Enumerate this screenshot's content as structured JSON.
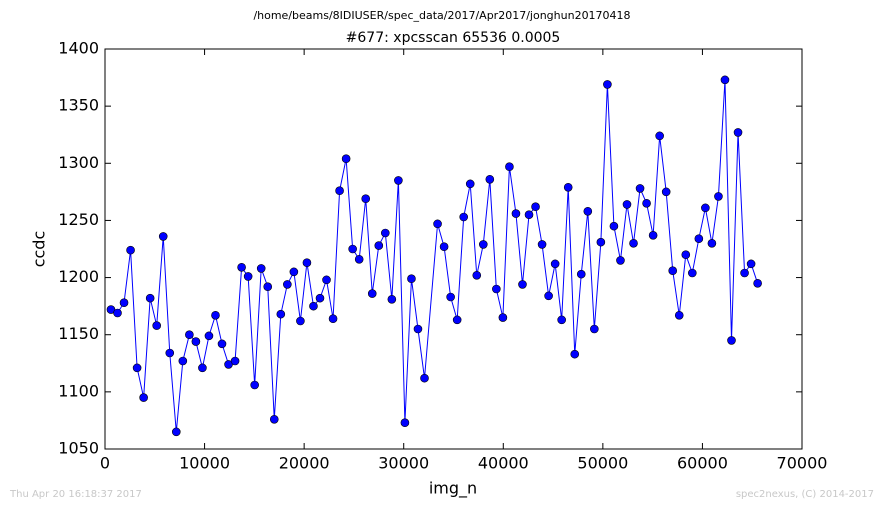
{
  "chart_data": {
    "type": "line",
    "suptitle": "/home/beams/8IDIUSER/spec_data/2017/Apr2017/jonghun20170418",
    "title": "#677: xpcsscan 65536 0.0005",
    "x_label": "img_n",
    "y_label": "ccdc",
    "footer_left": "Thu Apr 20 16:18:37 2017",
    "footer_right": "spec2nexus, (C) 2014-2017",
    "xlim": [
      0,
      70000
    ],
    "ylim": [
      1050,
      1400
    ],
    "xticks": [
      0,
      10000,
      20000,
      30000,
      40000,
      50000,
      60000,
      70000
    ],
    "yticks": [
      1050,
      1100,
      1150,
      1200,
      1250,
      1300,
      1350,
      1400
    ],
    "grid": false,
    "x": [
      600,
      1256,
      1912,
      2568,
      3224,
      3880,
      4536,
      5192,
      5848,
      6504,
      7160,
      7816,
      8472,
      9128,
      9784,
      10440,
      11096,
      11752,
      12408,
      13064,
      13720,
      14376,
      15032,
      15688,
      16344,
      17000,
      17656,
      18312,
      18968,
      19624,
      20280,
      20936,
      21592,
      22248,
      22904,
      23560,
      24216,
      24872,
      25528,
      26184,
      26840,
      27496,
      28152,
      28808,
      29464,
      30120,
      30776,
      31432,
      32088,
      33400,
      34056,
      34712,
      35368,
      36024,
      36680,
      37336,
      37992,
      38648,
      39304,
      39960,
      40616,
      41272,
      41928,
      42584,
      43240,
      43896,
      44552,
      45208,
      45864,
      46520,
      47176,
      47832,
      48488,
      49144,
      49800,
      50456,
      51112,
      51768,
      52424,
      53080,
      53736,
      54392,
      55048,
      55704,
      56360,
      57016,
      57672,
      58328,
      58984,
      59640,
      60296,
      60952,
      61608,
      62264,
      62920,
      63576,
      64232,
      64888,
      65544
    ],
    "series": [
      {
        "color": "#0000ff",
        "values": [
          1172,
          1169,
          1178,
          1224,
          1121,
          1095,
          1182,
          1158,
          1236,
          1134,
          1065,
          1127,
          1150,
          1144,
          1121,
          1149,
          1167,
          1142,
          1124,
          1127,
          1209,
          1201,
          1106,
          1208,
          1192,
          1076,
          1168,
          1194,
          1205,
          1162,
          1213,
          1175,
          1182,
          1198,
          1164,
          1276,
          1304,
          1225,
          1216,
          1269,
          1186,
          1228,
          1239,
          1181,
          1285,
          1073,
          1199,
          1155,
          1112,
          1247,
          1227,
          1183,
          1163,
          1253,
          1282,
          1202,
          1229,
          1286,
          1190,
          1165,
          1297,
          1256,
          1194,
          1255,
          1262,
          1229,
          1184,
          1212,
          1163,
          1279,
          1133,
          1203,
          1258,
          1155,
          1231,
          1369,
          1245,
          1215,
          1264,
          1230,
          1278,
          1265,
          1237,
          1324,
          1275,
          1206,
          1167,
          1220,
          1204,
          1234,
          1261,
          1230,
          1271,
          1373,
          1145,
          1327,
          1204,
          1212,
          1195
        ]
      }
    ]
  }
}
